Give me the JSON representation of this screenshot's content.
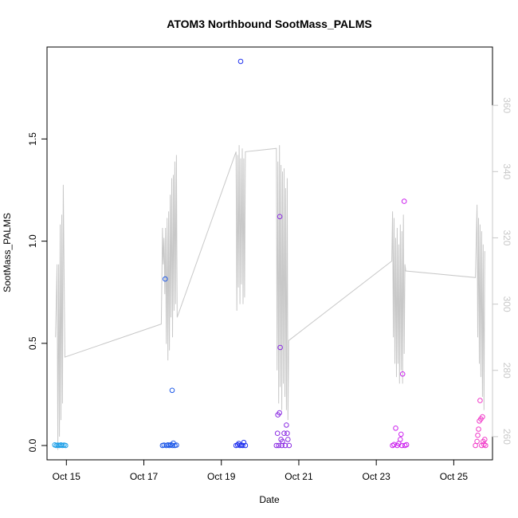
{
  "chart_data": {
    "type": "scatter",
    "title": "ATOM3 Northbound SootMass_PALMS",
    "xlabel": "Date",
    "ylabel": "SootMass_PALMS",
    "x_ticks": [
      "Oct 15",
      "Oct 17",
      "Oct 19",
      "Oct 21",
      "Oct 23",
      "Oct 25"
    ],
    "x_tick_values": [
      15,
      17,
      19,
      21,
      23,
      25
    ],
    "xlim": [
      14.5,
      26.0
    ],
    "y_ticks": [
      "0.0",
      "0.5",
      "1.0",
      "1.5"
    ],
    "y_tick_values": [
      0,
      0.5,
      1.0,
      1.5
    ],
    "ylim": [
      -0.07,
      1.95
    ],
    "y2_ticks": [
      "260",
      "280",
      "300",
      "320",
      "340",
      "360"
    ],
    "y2_tick_values": [
      260,
      280,
      300,
      320,
      340,
      360
    ],
    "y2lim": [
      253.0,
      377.6
    ],
    "grid": false,
    "colors": {
      "axis": "#000000",
      "secondary_axis": "#c8c8c8",
      "secondary_line": "#c8c8c8"
    },
    "series": [
      {
        "marker": "open-circle",
        "color": "#1fa0e8",
        "points": [
          [
            14.7,
            0.003
          ],
          [
            14.74,
            0.0
          ],
          [
            14.78,
            0.002
          ],
          [
            14.82,
            0.0
          ],
          [
            14.86,
            0.003
          ],
          [
            14.9,
            0.0
          ],
          [
            14.94,
            0.002
          ],
          [
            14.98,
            0.0
          ]
        ]
      },
      {
        "marker": "open-circle",
        "color": "#1f5ae8",
        "points": [
          [
            17.48,
            0.0
          ],
          [
            17.52,
            0.002
          ],
          [
            17.55,
            0.815
          ],
          [
            17.58,
            0.0
          ],
          [
            17.62,
            0.003
          ],
          [
            17.66,
            0.0
          ],
          [
            17.7,
            0.004
          ],
          [
            17.73,
            0.27
          ],
          [
            17.74,
            0.0
          ],
          [
            17.76,
            0.012
          ],
          [
            17.8,
            0.0
          ],
          [
            17.84,
            0.002
          ]
        ]
      },
      {
        "marker": "open-circle",
        "color": "#2233ee",
        "points": [
          [
            19.38,
            0.0
          ],
          [
            19.42,
            0.003
          ],
          [
            19.45,
            0.01
          ],
          [
            19.48,
            0.0
          ],
          [
            19.5,
            1.88
          ],
          [
            19.52,
            0.002
          ],
          [
            19.55,
            0.0
          ],
          [
            19.58,
            0.015
          ],
          [
            19.62,
            0.0
          ]
        ]
      },
      {
        "marker": "open-circle",
        "color": "#8a2be2",
        "points": [
          [
            20.42,
            0.0
          ],
          [
            20.45,
            0.06
          ],
          [
            20.46,
            0.15
          ],
          [
            20.48,
            0.0
          ],
          [
            20.5,
            0.16
          ],
          [
            20.51,
            1.12
          ],
          [
            20.52,
            0.48
          ],
          [
            20.54,
            0.03
          ],
          [
            20.56,
            0.0
          ],
          [
            20.58,
            0.02
          ],
          [
            20.62,
            0.06
          ],
          [
            20.65,
            0.0
          ],
          [
            20.68,
            0.1
          ],
          [
            20.7,
            0.06
          ],
          [
            20.72,
            0.03
          ],
          [
            20.75,
            0.0
          ]
        ]
      },
      {
        "marker": "open-circle",
        "color": "#cc22ee",
        "points": [
          [
            23.42,
            0.0
          ],
          [
            23.46,
            0.005
          ],
          [
            23.5,
            0.085
          ],
          [
            23.54,
            0.0
          ],
          [
            23.58,
            0.01
          ],
          [
            23.62,
            0.03
          ],
          [
            23.64,
            0.055
          ],
          [
            23.66,
            0.0
          ],
          [
            23.68,
            0.35
          ],
          [
            23.72,
            1.195
          ],
          [
            23.74,
            0.0
          ],
          [
            23.78,
            0.004
          ]
        ]
      },
      {
        "marker": "open-circle",
        "color": "#f03ac8",
        "points": [
          [
            25.56,
            0.0
          ],
          [
            25.6,
            0.02
          ],
          [
            25.62,
            0.05
          ],
          [
            25.64,
            0.08
          ],
          [
            25.66,
            0.12
          ],
          [
            25.68,
            0.22
          ],
          [
            25.7,
            0.13
          ],
          [
            25.72,
            0.0
          ],
          [
            25.74,
            0.14
          ],
          [
            25.76,
            0.02
          ],
          [
            25.78,
            0.005
          ],
          [
            25.8,
            0.03
          ],
          [
            25.82,
            0.0
          ]
        ]
      }
    ],
    "secondary_line": {
      "color": "#c8c8c8",
      "points": [
        [
          14.72,
          290
        ],
        [
          14.76,
          312
        ],
        [
          14.78,
          256
        ],
        [
          14.8,
          312
        ],
        [
          14.82,
          260
        ],
        [
          14.84,
          324
        ],
        [
          14.86,
          265
        ],
        [
          14.88,
          327
        ],
        [
          14.9,
          270
        ],
        [
          14.92,
          336
        ],
        [
          14.96,
          284
        ],
        [
          17.45,
          294
        ],
        [
          17.48,
          323
        ],
        [
          17.5,
          312
        ],
        [
          17.52,
          320
        ],
        [
          17.54,
          303
        ],
        [
          17.56,
          323
        ],
        [
          17.58,
          288
        ],
        [
          17.6,
          326
        ],
        [
          17.62,
          283
        ],
        [
          17.64,
          328
        ],
        [
          17.66,
          286
        ],
        [
          17.68,
          333
        ],
        [
          17.7,
          296
        ],
        [
          17.72,
          338
        ],
        [
          17.74,
          290
        ],
        [
          17.76,
          339
        ],
        [
          17.78,
          298
        ],
        [
          17.8,
          343
        ],
        [
          17.82,
          300
        ],
        [
          17.84,
          345
        ],
        [
          17.86,
          296
        ],
        [
          19.38,
          346
        ],
        [
          19.4,
          298
        ],
        [
          19.42,
          345
        ],
        [
          19.44,
          305
        ],
        [
          19.46,
          348
        ],
        [
          19.48,
          300
        ],
        [
          19.5,
          344
        ],
        [
          19.52,
          306
        ],
        [
          19.54,
          347
        ],
        [
          19.56,
          300
        ],
        [
          19.58,
          344
        ],
        [
          19.6,
          302
        ],
        [
          19.62,
          346
        ],
        [
          20.42,
          347
        ],
        [
          20.44,
          280
        ],
        [
          20.46,
          343
        ],
        [
          20.48,
          270
        ],
        [
          20.5,
          348
        ],
        [
          20.52,
          275
        ],
        [
          20.54,
          342
        ],
        [
          20.56,
          268
        ],
        [
          20.58,
          340
        ],
        [
          20.6,
          276
        ],
        [
          20.62,
          341
        ],
        [
          20.64,
          272
        ],
        [
          20.66,
          335
        ],
        [
          20.68,
          268
        ],
        [
          20.7,
          338
        ],
        [
          20.72,
          265
        ],
        [
          20.74,
          289
        ],
        [
          23.4,
          313
        ],
        [
          23.42,
          328
        ],
        [
          23.44,
          290
        ],
        [
          23.46,
          326
        ],
        [
          23.48,
          282
        ],
        [
          23.5,
          320
        ],
        [
          23.52,
          278
        ],
        [
          23.54,
          323
        ],
        [
          23.56,
          282
        ],
        [
          23.58,
          318
        ],
        [
          23.6,
          276
        ],
        [
          23.62,
          324
        ],
        [
          23.64,
          280
        ],
        [
          23.66,
          322
        ],
        [
          23.68,
          276
        ],
        [
          23.7,
          327
        ],
        [
          23.72,
          285
        ],
        [
          23.74,
          312
        ],
        [
          23.76,
          310
        ],
        [
          25.56,
          308
        ],
        [
          25.6,
          330
        ],
        [
          25.62,
          290
        ],
        [
          25.64,
          326
        ],
        [
          25.66,
          282
        ],
        [
          25.68,
          324
        ],
        [
          25.7,
          278
        ],
        [
          25.72,
          322
        ],
        [
          25.74,
          272
        ],
        [
          25.76,
          318
        ],
        [
          25.78,
          268
        ],
        [
          25.8,
          316
        ]
      ]
    }
  }
}
